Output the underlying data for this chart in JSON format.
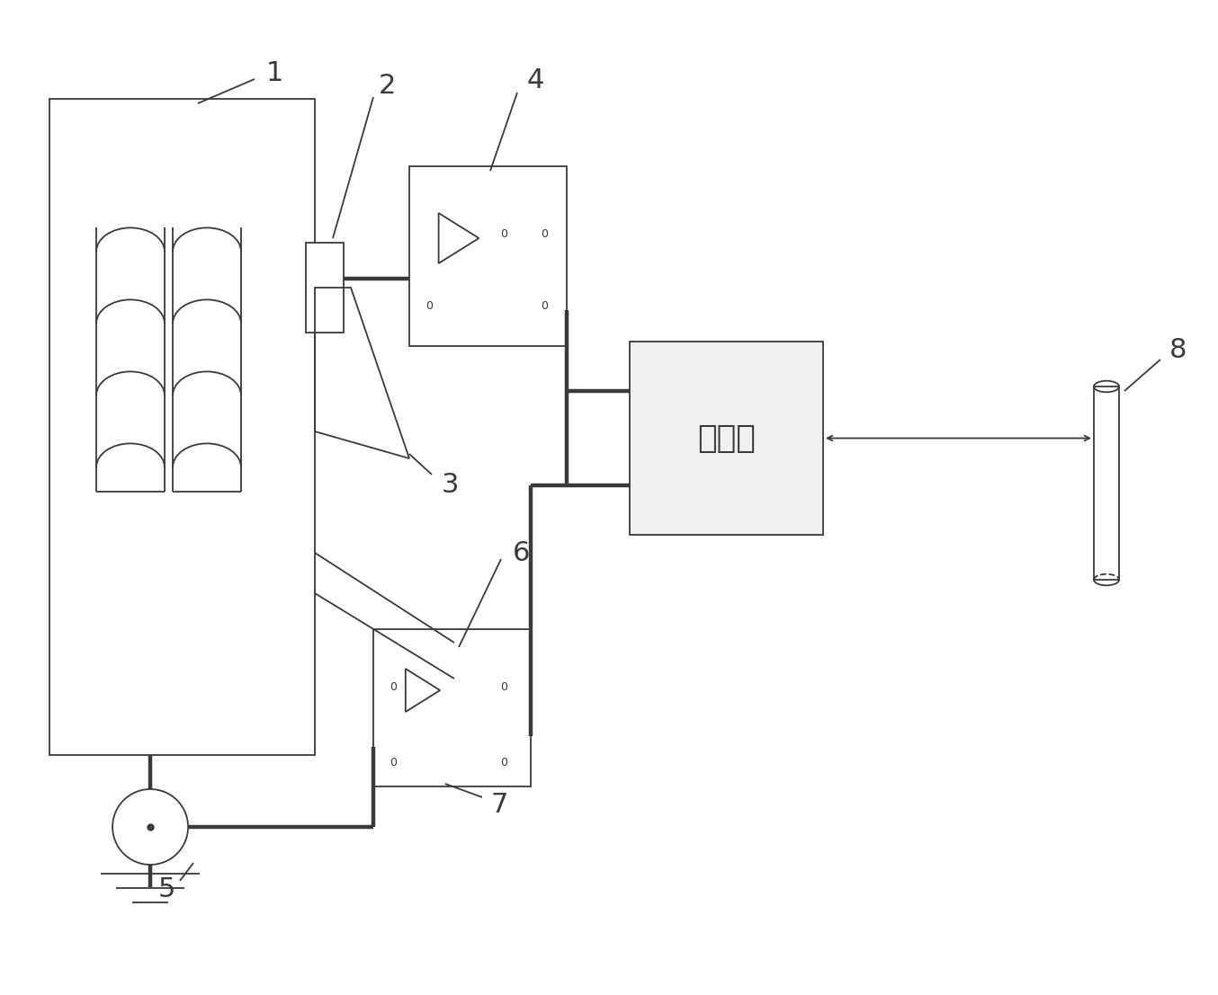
{
  "bg_color": "#ffffff",
  "line_color": "#3a3a3a",
  "lw_thin": 1.3,
  "lw_thick": 3.2,
  "ipc_text": "工控机",
  "label_1": "1",
  "label_2": "2",
  "label_3": "3",
  "label_4": "4",
  "label_5": "5",
  "label_6": "6",
  "label_7": "7",
  "label_8": "8",
  "fs_label": 22
}
